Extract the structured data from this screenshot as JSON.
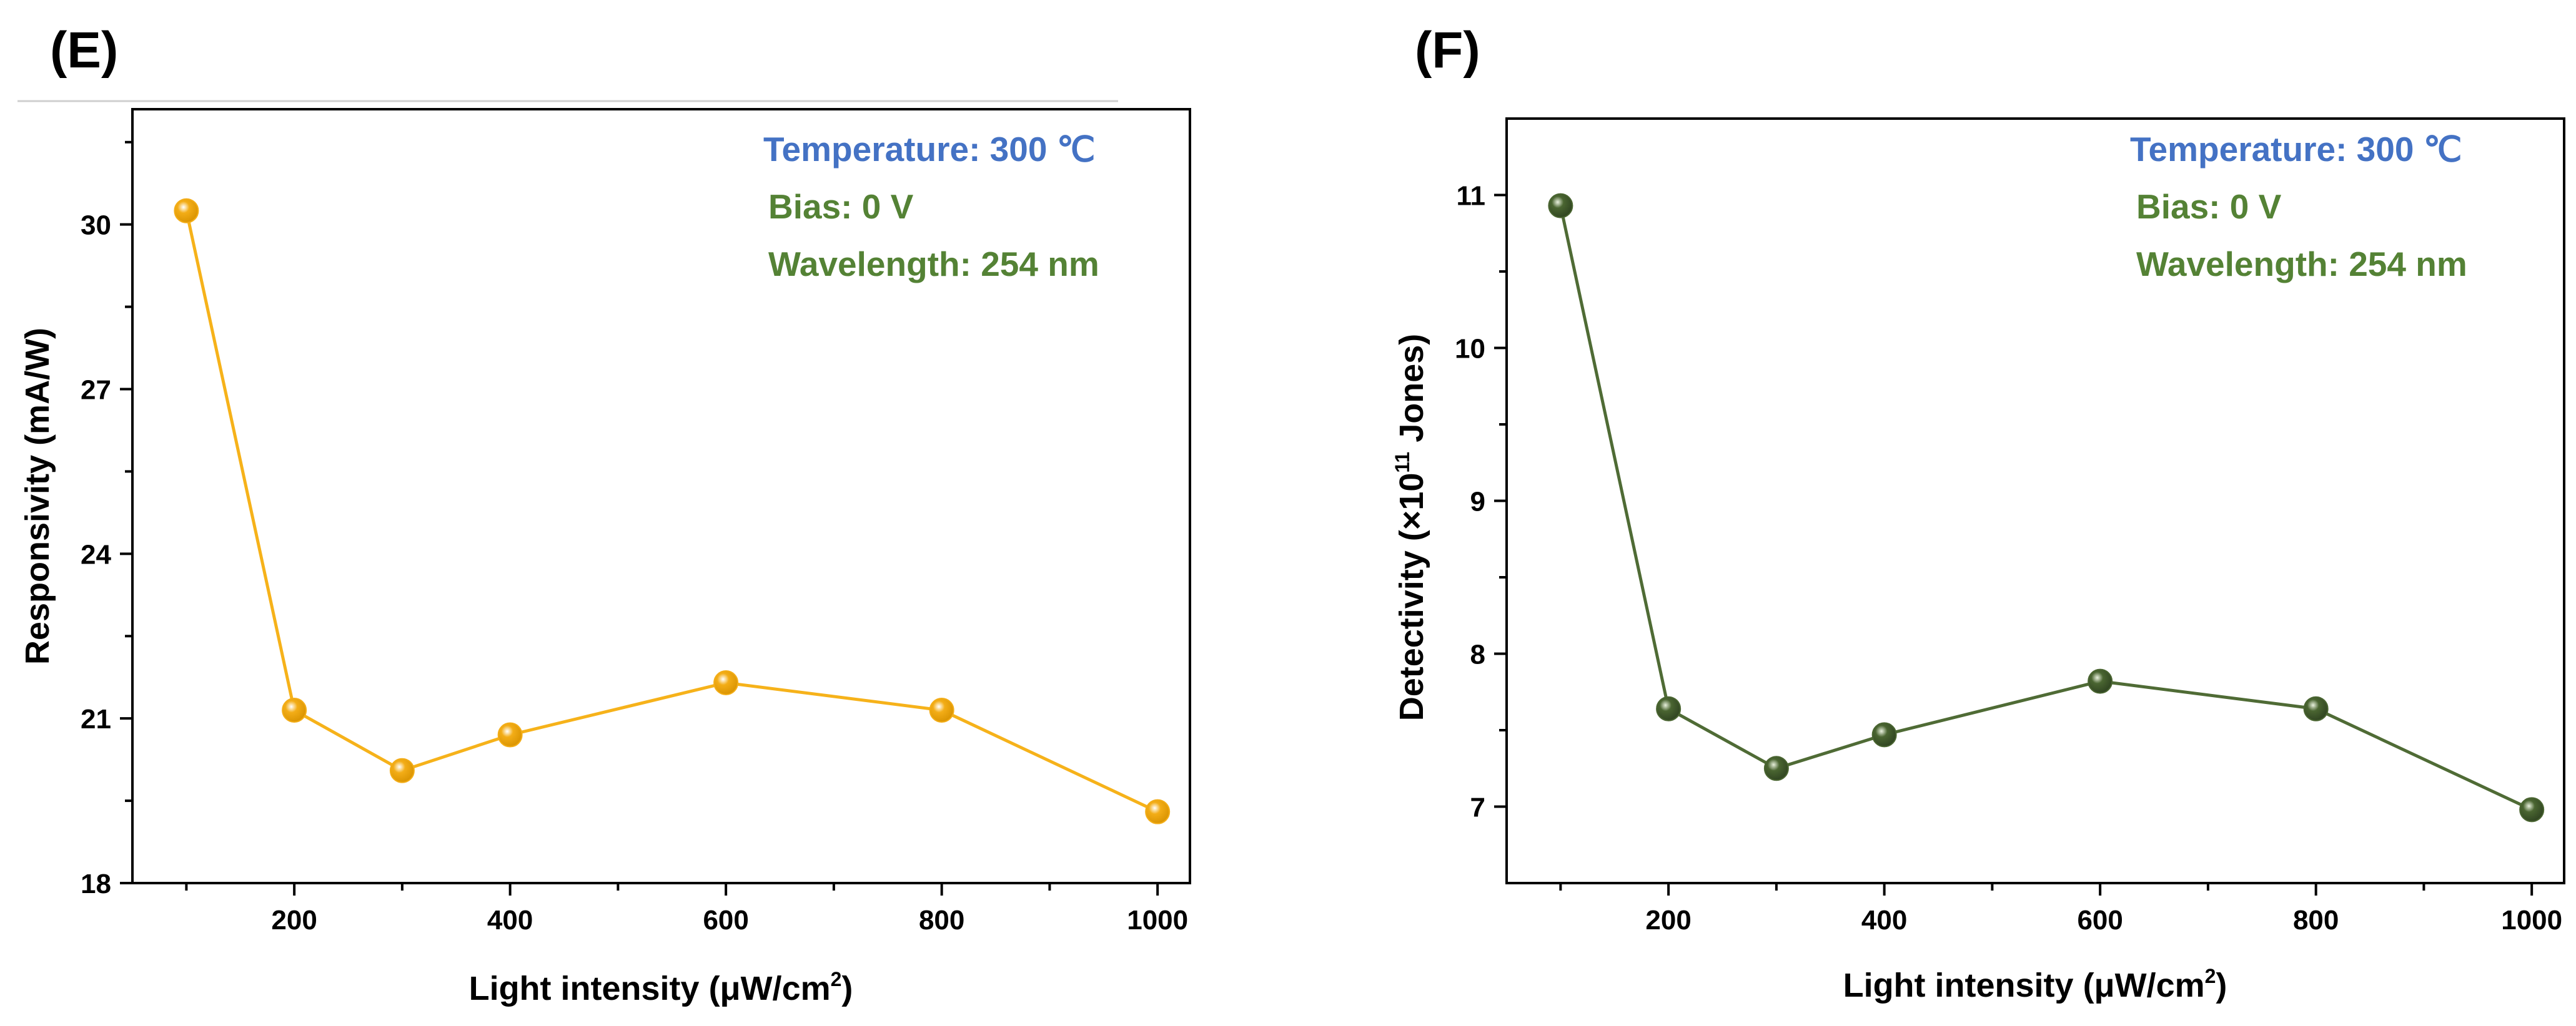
{
  "figure": {
    "top_rule_color": "#cfcfcf"
  },
  "chart_data": [
    {
      "type": "line",
      "panel_label": "(E)",
      "title": "",
      "xlabel": "Light intensity (μW/cm2)",
      "xlabel_parts": {
        "main": "Light intensity (",
        "mu": "μ",
        "unit": "W/cm",
        "sup": "2",
        "close": ")"
      },
      "ylabel": "Responsivity (mA/W)",
      "ylabel_parts": {
        "main": "Responsivity (mA/W)"
      },
      "xlim": [
        50,
        1030
      ],
      "ylim": [
        18,
        32.1
      ],
      "xticks": [
        200,
        400,
        600,
        800,
        1000
      ],
      "xticks_minor": [
        100,
        300,
        500,
        700,
        900
      ],
      "yticks": [
        18,
        21,
        24,
        27,
        30
      ],
      "x": [
        100,
        200,
        300,
        400,
        600,
        800,
        1000
      ],
      "series": [
        {
          "name": "Responsivity",
          "color": "#f6b21a",
          "marker_color": "#f3ad17",
          "values": [
            30.25,
            21.15,
            20.05,
            20.7,
            21.65,
            21.15,
            19.3
          ]
        }
      ],
      "annotations": [
        {
          "text": "Temperature: 300 ℃",
          "color": "#4472c4"
        },
        {
          "text": "Bias: 0 V",
          "color": "#548235"
        },
        {
          "text": "Wavelength: 254 nm",
          "color": "#548235"
        }
      ],
      "grid": false,
      "legend": "none"
    },
    {
      "type": "line",
      "panel_label": "(F)",
      "title": "",
      "xlabel": "Light intensity (μW/cm2)",
      "xlabel_parts": {
        "main": "Light intensity (",
        "mu": "μ",
        "unit": "W/cm",
        "sup": "2",
        "close": ")"
      },
      "ylabel": "Detectivity (×1011 Jones)",
      "ylabel_parts": {
        "pre": "Detectivity (×10",
        "sup": "11",
        "post": " Jones)"
      },
      "xlim": [
        50,
        1030
      ],
      "ylim": [
        6.5,
        11.5
      ],
      "xticks": [
        200,
        400,
        600,
        800,
        1000
      ],
      "xticks_minor": [
        100,
        300,
        500,
        700,
        900
      ],
      "yticks": [
        7,
        8,
        9,
        10,
        11
      ],
      "x": [
        100,
        200,
        300,
        400,
        600,
        800,
        1000
      ],
      "series": [
        {
          "name": "Detectivity",
          "color": "#4f6b35",
          "marker_color": "#4a6531",
          "values": [
            10.93,
            7.64,
            7.25,
            7.47,
            7.82,
            7.64,
            6.98
          ]
        }
      ],
      "annotations": [
        {
          "text": "Temperature: 300 ℃",
          "color": "#4472c4"
        },
        {
          "text": "Bias: 0 V",
          "color": "#548235"
        },
        {
          "text": "Wavelength: 254 nm",
          "color": "#548235"
        }
      ],
      "grid": false,
      "legend": "none"
    }
  ]
}
